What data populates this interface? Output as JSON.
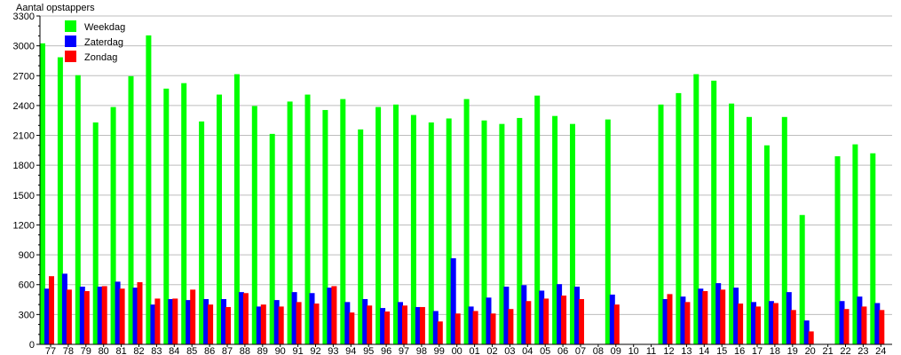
{
  "chart_data": {
    "type": "bar",
    "title": "",
    "xlabel": "",
    "ylabel": "Aantal opstappers",
    "ylim": [
      0,
      3300
    ],
    "yticks": [
      0,
      300,
      600,
      900,
      1200,
      1500,
      1800,
      2100,
      2400,
      2700,
      3000,
      3300
    ],
    "grid": true,
    "legend_position": "top-left",
    "categories": [
      "77",
      "78",
      "79",
      "80",
      "81",
      "82",
      "83",
      "84",
      "85",
      "86",
      "87",
      "88",
      "89",
      "90",
      "91",
      "92",
      "93",
      "94",
      "95",
      "96",
      "97",
      "98",
      "99",
      "00",
      "01",
      "02",
      "03",
      "04",
      "05",
      "06",
      "07",
      "08",
      "09",
      "10",
      "11",
      "12",
      "13",
      "14",
      "15",
      "16",
      "17",
      "18",
      "19",
      "20",
      "21",
      "22",
      "23",
      "24"
    ],
    "series": [
      {
        "name": "Weekdag",
        "color": "#00ff00",
        "values": [
          3025,
          2885,
          2705,
          2230,
          2385,
          2695,
          3105,
          2570,
          2625,
          2240,
          2510,
          2715,
          2395,
          2115,
          2440,
          2510,
          2355,
          2465,
          2160,
          2385,
          2410,
          2305,
          2230,
          2270,
          2465,
          2250,
          2215,
          2275,
          2500,
          2295,
          2215,
          null,
          2260,
          null,
          null,
          2410,
          2525,
          2715,
          2650,
          2420,
          2285,
          2000,
          2285,
          1300,
          null,
          1890,
          2010,
          1920
        ]
      },
      {
        "name": "Zaterdag",
        "color": "#0000ff",
        "values": [
          560,
          710,
          580,
          580,
          630,
          570,
          400,
          455,
          445,
          455,
          455,
          525,
          380,
          445,
          525,
          515,
          570,
          425,
          455,
          365,
          425,
          375,
          335,
          865,
          380,
          470,
          580,
          595,
          540,
          605,
          580,
          null,
          500,
          null,
          null,
          455,
          480,
          560,
          615,
          570,
          425,
          435,
          525,
          240,
          null,
          435,
          480,
          415
        ]
      },
      {
        "name": "Zondag",
        "color": "#ff0000",
        "values": [
          685,
          550,
          535,
          585,
          560,
          625,
          460,
          460,
          550,
          400,
          375,
          515,
          400,
          380,
          425,
          410,
          585,
          320,
          390,
          330,
          390,
          375,
          230,
          310,
          335,
          310,
          355,
          435,
          460,
          490,
          455,
          null,
          400,
          null,
          null,
          505,
          425,
          535,
          550,
          410,
          380,
          415,
          345,
          130,
          null,
          355,
          380,
          345
        ]
      }
    ]
  }
}
